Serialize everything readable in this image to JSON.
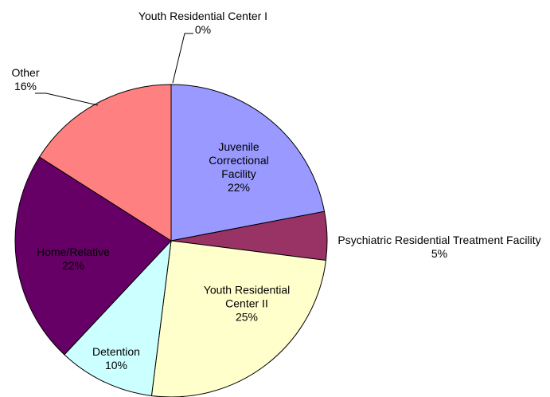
{
  "chart_data": {
    "type": "pie",
    "categories": [
      "Youth Residential Center I",
      "Juvenile Correctional Facility",
      "Psychiatric Residential Treatment Facility",
      "Youth Residential Center II",
      "Detention",
      "Home/Relative",
      "Other"
    ],
    "values": [
      0,
      22,
      5,
      25,
      10,
      22,
      16
    ],
    "value_labels": [
      "0%",
      "22%",
      "5%",
      "25%",
      "10%",
      "22%",
      "16%"
    ],
    "colors": [
      "#333333",
      "#9999ff",
      "#993366",
      "#ffffcc",
      "#ccffff",
      "#660066",
      "#ff8080"
    ]
  }
}
